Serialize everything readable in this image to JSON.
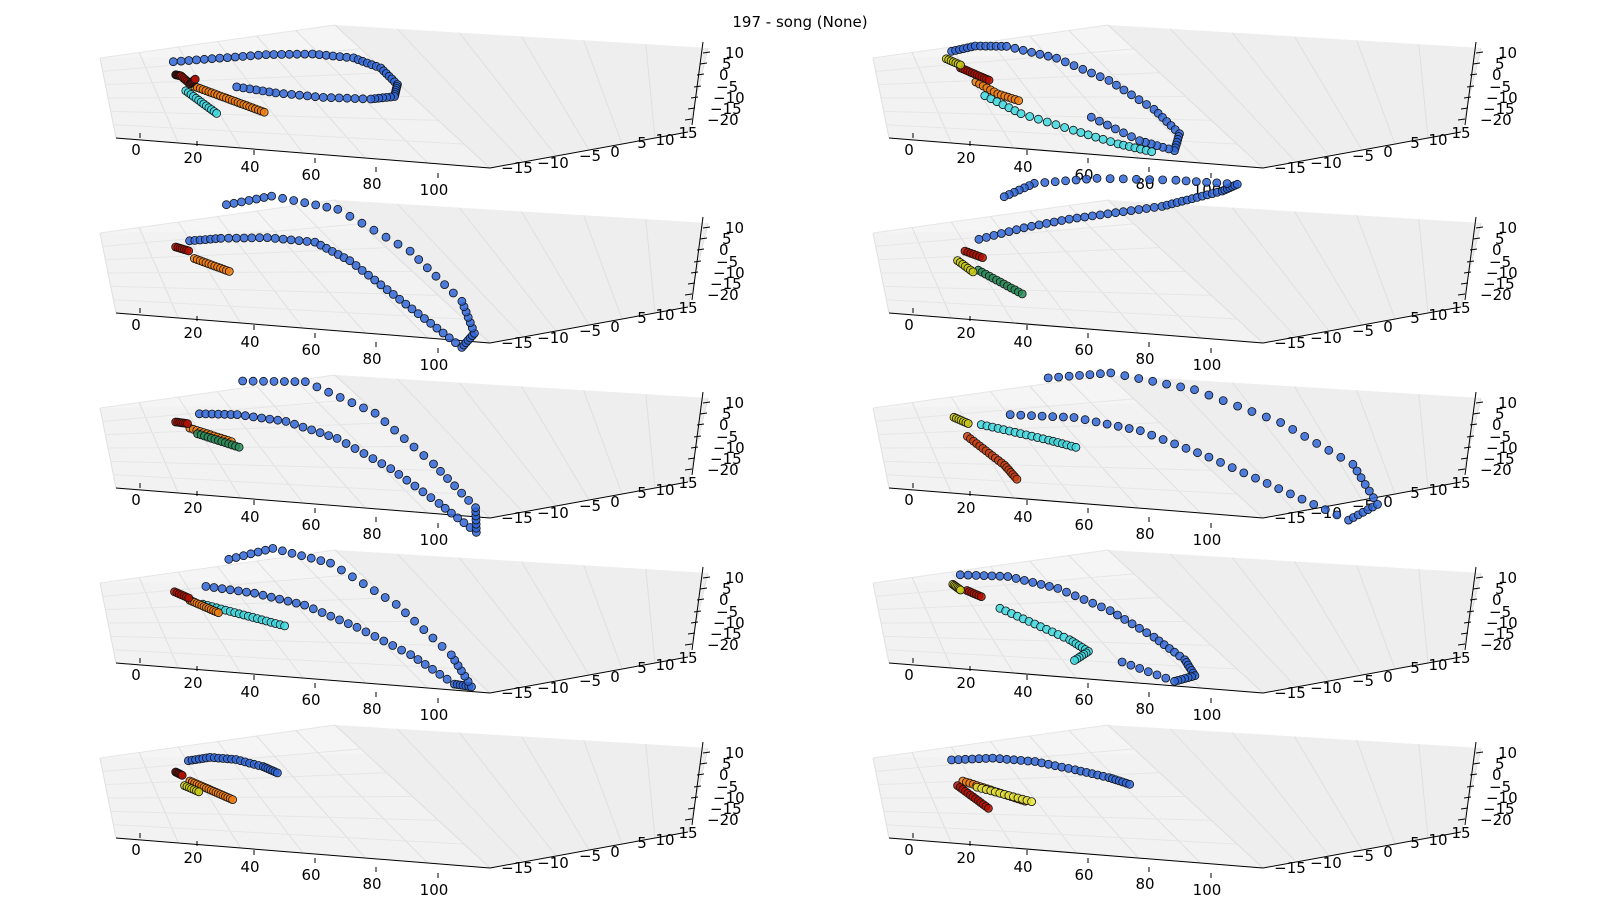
{
  "figure": {
    "title": "197 - song (None)"
  },
  "axes_common": {
    "x_ticks": [
      "0",
      "20",
      "40",
      "60",
      "80",
      "100"
    ],
    "y_ticks": [
      "−15",
      "−10",
      "−5",
      "0",
      "5",
      "10",
      "15"
    ],
    "z_ticks": [
      "10",
      "5",
      "0",
      "−5",
      "−10",
      "−15",
      "−20"
    ]
  },
  "chart_data": [
    {
      "type": "scatter3d",
      "panel": "row1-left",
      "xlim": [
        -5,
        110
      ],
      "ylim": [
        -18,
        17
      ],
      "zlim": [
        -22,
        13
      ],
      "grid": true,
      "series": [
        {
          "color": "#2f66d8",
          "x": [
            20,
            35,
            50,
            65,
            78,
            86,
            90,
            88,
            80,
            65,
            50,
            38
          ],
          "y": [
            2,
            4,
            6,
            8,
            9,
            8,
            5,
            2,
            0,
            -1,
            -2,
            -2
          ],
          "z": [
            5,
            6,
            7,
            7,
            6,
            4,
            1,
            -1,
            -1,
            -1,
            0,
            1
          ]
        },
        {
          "color": "#f07d10",
          "x": [
            25,
            30,
            35,
            40,
            45
          ],
          "y": [
            -2,
            -3,
            -4,
            -5,
            -6
          ],
          "z": [
            0,
            -1,
            -2,
            -3,
            -4
          ]
        },
        {
          "color": "#3fd8e0",
          "x": [
            22,
            26,
            30
          ],
          "y": [
            -3,
            -5,
            -7
          ],
          "z": [
            -1,
            -3,
            -5
          ]
        },
        {
          "color": "#b01000",
          "x": [
            20,
            22,
            24,
            26
          ],
          "y": [
            0,
            1,
            -1,
            0
          ],
          "z": [
            2,
            1,
            0,
            1
          ]
        }
      ]
    },
    {
      "type": "scatter3d",
      "panel": "row1-right",
      "xlim": [
        -5,
        110
      ],
      "ylim": [
        -18,
        17
      ],
      "zlim": [
        -22,
        13
      ],
      "grid": true,
      "series": [
        {
          "color": "#2f66d8",
          "x": [
            22,
            30,
            40,
            55,
            70,
            82,
            88,
            85,
            75,
            62
          ],
          "y": [
            3,
            5,
            6,
            5,
            2,
            -3,
            -8,
            -12,
            -10,
            -5
          ],
          "z": [
            8,
            9,
            9,
            7,
            3,
            -2,
            -6,
            -9,
            -8,
            -5
          ]
        },
        {
          "color": "#3fd8e0",
          "x": [
            30,
            40,
            55,
            68,
            78
          ],
          "y": [
            -3,
            -6,
            -9,
            -11,
            -12
          ],
          "z": [
            -2,
            -5,
            -7,
            -9,
            -10
          ]
        },
        {
          "color": "#f07d10",
          "x": [
            28,
            34,
            40
          ],
          "y": [
            -1,
            -3,
            -4
          ],
          "z": [
            1,
            -1,
            -2
          ]
        },
        {
          "color": "#b01000",
          "x": [
            24,
            28,
            32
          ],
          "y": [
            1,
            0,
            -1
          ],
          "z": [
            4,
            3,
            2
          ]
        },
        {
          "color": "#c8c814",
          "x": [
            20,
            24
          ],
          "y": [
            2,
            1
          ],
          "z": [
            6,
            5
          ]
        }
      ]
    },
    {
      "type": "scatter3d",
      "panel": "row2-left",
      "xlim": [
        -5,
        110
      ],
      "ylim": [
        -18,
        17
      ],
      "zlim": [
        -22,
        13
      ],
      "grid": true,
      "series": [
        {
          "color": "#2f66d8",
          "x": [
            25,
            35,
            50,
            65,
            75,
            85,
            95,
            105,
            110,
            108,
            95,
            75,
            55,
            40
          ],
          "y": [
            2,
            3,
            5,
            6,
            4,
            0,
            -4,
            -8,
            -5,
            0,
            8,
            14,
            15,
            12
          ],
          "z": [
            4,
            5,
            5,
            4,
            0,
            -6,
            -12,
            -18,
            -15,
            -8,
            2,
            10,
            12,
            10
          ]
        },
        {
          "color": "#f07d10",
          "x": [
            25,
            30,
            35
          ],
          "y": [
            -2,
            -3,
            -4
          ],
          "z": [
            1,
            0,
            -1
          ]
        },
        {
          "color": "#b01000",
          "x": [
            20,
            24
          ],
          "y": [
            0,
            0
          ],
          "z": [
            3,
            2
          ]
        }
      ]
    },
    {
      "type": "scatter3d",
      "panel": "row2-right",
      "xlim": [
        -5,
        110
      ],
      "ylim": [
        -18,
        17
      ],
      "zlim": [
        -22,
        13
      ],
      "grid": true,
      "series": [
        {
          "color": "#2f66d8",
          "x": [
            30,
            45,
            60,
            75,
            90,
            100,
            110,
            115,
            95,
            70,
            50,
            40
          ],
          "y": [
            2,
            5,
            8,
            10,
            12,
            14,
            16,
            17,
            14,
            12,
            10,
            8
          ],
          "z": [
            5,
            8,
            10,
            12,
            14,
            16,
            18,
            20,
            22,
            22,
            20,
            16
          ]
        },
        {
          "color": "#2a8c5a",
          "x": [
            28,
            34,
            40
          ],
          "y": [
            -3,
            -5,
            -7
          ],
          "z": [
            -2,
            -4,
            -6
          ]
        },
        {
          "color": "#b01000",
          "x": [
            25,
            30
          ],
          "y": [
            0,
            -1
          ],
          "z": [
            2,
            1
          ]
        },
        {
          "color": "#c8c814",
          "x": [
            22,
            26
          ],
          "y": [
            -2,
            -4
          ],
          "z": [
            0,
            -2
          ]
        }
      ]
    },
    {
      "type": "scatter3d",
      "panel": "row3-left",
      "xlim": [
        -5,
        110
      ],
      "ylim": [
        -18,
        17
      ],
      "zlim": [
        -22,
        13
      ],
      "grid": true,
      "series": [
        {
          "color": "#2f66d8",
          "x": [
            28,
            40,
            55,
            70,
            85,
            98,
            108,
            110,
            100,
            85,
            65,
            45
          ],
          "y": [
            2,
            3,
            3,
            1,
            -3,
            -8,
            -12,
            -6,
            2,
            10,
            14,
            12
          ],
          "z": [
            5,
            5,
            4,
            1,
            -5,
            -12,
            -18,
            -14,
            -6,
            4,
            10,
            10
          ]
        },
        {
          "color": "#f07d10",
          "x": [
            24,
            30,
            36
          ],
          "y": [
            -1,
            -2,
            -3
          ],
          "z": [
            2,
            1,
            0
          ]
        },
        {
          "color": "#2a8c5a",
          "x": [
            26,
            32,
            38
          ],
          "y": [
            -2,
            -3,
            -4
          ],
          "z": [
            1,
            0,
            -1
          ]
        },
        {
          "color": "#b01000",
          "x": [
            20,
            24
          ],
          "y": [
            0,
            1
          ],
          "z": [
            3,
            2
          ]
        }
      ]
    },
    {
      "type": "scatter3d",
      "panel": "row3-right",
      "xlim": [
        -5,
        110
      ],
      "ylim": [
        -18,
        17
      ],
      "zlim": [
        -22,
        13
      ],
      "grid": true,
      "series": [
        {
          "color": "#2f66d8",
          "x": [
            40,
            60,
            80,
            100,
            120,
            140,
            150,
            145,
            125,
            100,
            75,
            55
          ],
          "y": [
            3,
            4,
            3,
            0,
            -4,
            -8,
            -5,
            2,
            8,
            12,
            14,
            12
          ],
          "z": [
            5,
            5,
            3,
            -2,
            -8,
            -14,
            -10,
            -2,
            6,
            12,
            14,
            12
          ]
        },
        {
          "color": "#3fd8e0",
          "x": [
            30,
            40,
            50,
            58
          ],
          "y": [
            0,
            -1,
            -2,
            -3
          ],
          "z": [
            3,
            2,
            1,
            0
          ]
        },
        {
          "color": "#c84010",
          "x": [
            25,
            30,
            35,
            38
          ],
          "y": [
            -2,
            -4,
            -6,
            -8
          ],
          "z": [
            0,
            -3,
            -6,
            -9
          ]
        },
        {
          "color": "#c8c814",
          "x": [
            22,
            26
          ],
          "y": [
            1,
            0
          ],
          "z": [
            4,
            3
          ]
        }
      ]
    },
    {
      "type": "scatter3d",
      "panel": "row4-left",
      "xlim": [
        -5,
        110
      ],
      "ylim": [
        -18,
        17
      ],
      "zlim": [
        -22,
        13
      ],
      "grid": true,
      "series": [
        {
          "color": "#2f66d8",
          "x": [
            30,
            45,
            60,
            75,
            90,
            102,
            108,
            104,
            90,
            72,
            55,
            40
          ],
          "y": [
            2,
            2,
            1,
            -2,
            -6,
            -10,
            -8,
            -2,
            6,
            12,
            14,
            10
          ],
          "z": [
            6,
            5,
            3,
            -1,
            -6,
            -12,
            -14,
            -8,
            2,
            10,
            12,
            10
          ]
        },
        {
          "color": "#3fd8e0",
          "x": [
            28,
            36,
            44,
            52
          ],
          "y": [
            -1,
            -2,
            -3,
            -4
          ],
          "z": [
            2,
            1,
            0,
            -1
          ]
        },
        {
          "color": "#f07d10",
          "x": [
            24,
            28,
            32
          ],
          "y": [
            -1,
            -2,
            -3
          ],
          "z": [
            3,
            2,
            1
          ]
        },
        {
          "color": "#b01000",
          "x": [
            20,
            24
          ],
          "y": [
            1,
            0
          ],
          "z": [
            4,
            3
          ]
        }
      ]
    },
    {
      "type": "scatter3d",
      "panel": "row4-right",
      "xlim": [
        -5,
        110
      ],
      "ylim": [
        -18,
        17
      ],
      "zlim": [
        -22,
        13
      ],
      "grid": true,
      "series": [
        {
          "color": "#2f66d8",
          "x": [
            25,
            40,
            55,
            70,
            82,
            90,
            92,
            85,
            70
          ],
          "y": [
            4,
            5,
            4,
            1,
            -3,
            -7,
            -10,
            -12,
            -9
          ],
          "z": [
            8,
            8,
            6,
            2,
            -3,
            -7,
            -10,
            -11,
            -8
          ]
        },
        {
          "color": "#3fd8e0",
          "x": [
            35,
            45,
            55,
            60,
            55
          ],
          "y": [
            -2,
            -4,
            -6,
            -8,
            -10
          ],
          "z": [
            2,
            -1,
            -4,
            -6,
            -8
          ]
        },
        {
          "color": "#b01000",
          "x": [
            26,
            30
          ],
          "y": [
            1,
            0
          ],
          "z": [
            5,
            4
          ]
        },
        {
          "color": "#c8c814",
          "x": [
            22,
            24
          ],
          "y": [
            2,
            1
          ],
          "z": [
            6,
            5
          ]
        }
      ]
    },
    {
      "type": "scatter3d",
      "panel": "row5-left",
      "xlim": [
        -5,
        110
      ],
      "ylim": [
        -18,
        17
      ],
      "zlim": [
        -22,
        13
      ],
      "grid": true,
      "series": [
        {
          "color": "#2f66d8",
          "x": [
            25,
            32,
            40,
            48,
            52
          ],
          "y": [
            3,
            4,
            4,
            3,
            2
          ],
          "z": [
            5,
            6,
            6,
            5,
            4
          ]
        },
        {
          "color": "#f07d10",
          "x": [
            24,
            28,
            32,
            36
          ],
          "y": [
            -1,
            -2,
            -3,
            -4
          ],
          "z": [
            1,
            0,
            -1,
            -2
          ]
        },
        {
          "color": "#c8c814",
          "x": [
            22,
            26
          ],
          "y": [
            -2,
            -3
          ],
          "z": [
            0,
            -1
          ]
        },
        {
          "color": "#b01000",
          "x": [
            20,
            22
          ],
          "y": [
            0,
            0
          ],
          "z": [
            3,
            2
          ]
        }
      ]
    },
    {
      "type": "scatter3d",
      "panel": "row5-right",
      "xlim": [
        -5,
        110
      ],
      "ylim": [
        -18,
        17
      ],
      "zlim": [
        -22,
        13
      ],
      "grid": true,
      "series": [
        {
          "color": "#2f66d8",
          "x": [
            22,
            35,
            48,
            60,
            70,
            76
          ],
          "y": [
            3,
            4,
            4,
            3,
            2,
            1
          ],
          "z": [
            5,
            6,
            6,
            5,
            4,
            3
          ]
        },
        {
          "color": "#f07d10",
          "x": [
            24,
            30,
            36,
            42
          ],
          "y": [
            -1,
            -2,
            -3,
            -4
          ],
          "z": [
            1,
            0,
            -1,
            -2
          ]
        },
        {
          "color": "#e8e83c",
          "x": [
            28,
            36,
            44
          ],
          "y": [
            -2,
            -3,
            -4
          ],
          "z": [
            0,
            -1,
            -2
          ]
        },
        {
          "color": "#b01000",
          "x": [
            22,
            26,
            30
          ],
          "y": [
            -2,
            -4,
            -6
          ],
          "z": [
            0,
            -2,
            -4
          ]
        }
      ]
    }
  ]
}
